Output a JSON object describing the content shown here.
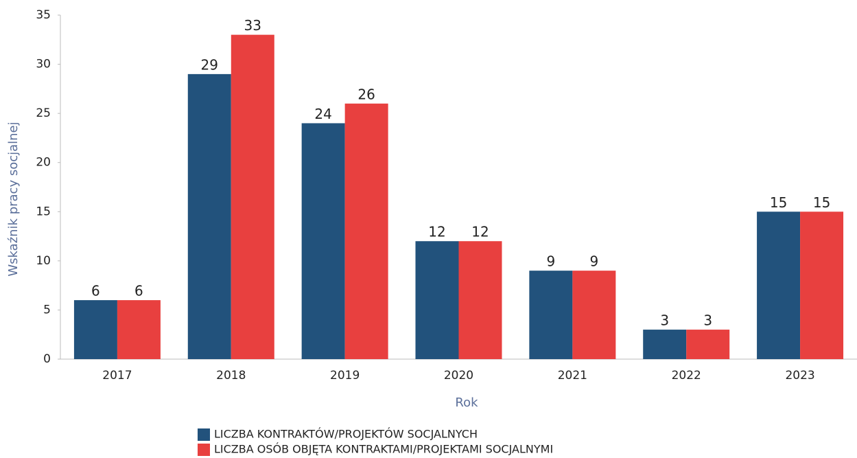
{
  "chart_data": {
    "type": "bar",
    "categories": [
      "2017",
      "2018",
      "2019",
      "2020",
      "2021",
      "2022",
      "2023"
    ],
    "series": [
      {
        "name": "LICZBA KONTRAKTÓW/PROJEKTÓW SOCJALNYCH",
        "color": "#22527c",
        "values": [
          6,
          29,
          24,
          12,
          9,
          3,
          15
        ]
      },
      {
        "name": "LICZBA OSÓB OBJĘTA KONTRAKTAMI/PROJEKTAMI SOCJALNYMI",
        "color": "#e8403f",
        "values": [
          6,
          33,
          26,
          12,
          9,
          3,
          15
        ]
      }
    ],
    "xlabel": "Rok",
    "ylabel": "Wskaźnik pracy socjalnej",
    "ylim": [
      0,
      35
    ],
    "yticks": [
      0,
      5,
      10,
      15,
      20,
      25,
      30,
      35
    ],
    "grid": false,
    "legend": "bottom"
  }
}
